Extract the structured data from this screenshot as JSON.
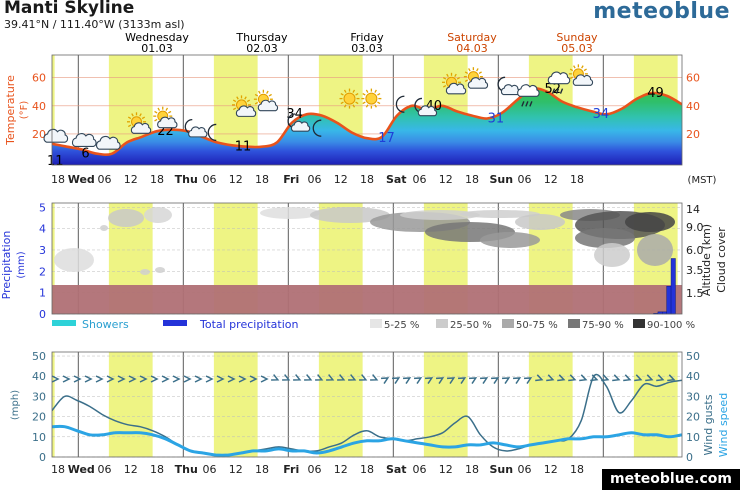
{
  "header": {
    "title": "Manti Skyline",
    "coords": "39.41°N / 111.40°W (3133m asl)",
    "brand": "meteoblue",
    "footer_brand": "meteoblue.com",
    "timezone": "(MST)"
  },
  "days": [
    {
      "name": "Wednesday",
      "date": "01.03",
      "color": "#000000"
    },
    {
      "name": "Thursday",
      "date": "02.03",
      "color": "#000000"
    },
    {
      "name": "Friday",
      "date": "03.03",
      "color": "#000000"
    },
    {
      "name": "Saturday",
      "date": "04.03",
      "color": "#cc4400"
    },
    {
      "name": "Sunday",
      "date": "05.03",
      "color": "#cc4400"
    }
  ],
  "x_tick_labels": [
    "18",
    "Wed",
    "06",
    "12",
    "18",
    "Thu",
    "06",
    "12",
    "18",
    "Fri",
    "06",
    "12",
    "18",
    "Sat",
    "06",
    "12",
    "18",
    "Sun",
    "06",
    "12",
    "18"
  ],
  "temperature": {
    "axis_label": "Temperature",
    "unit": "(°F)",
    "ticks": [
      "20",
      "40",
      "60"
    ],
    "ylim": [
      -2,
      76
    ],
    "series": [
      13,
      11,
      9,
      6,
      6,
      14,
      18,
      22,
      23,
      22,
      18,
      14,
      12,
      11,
      11,
      14,
      28,
      34,
      33,
      28,
      21,
      17,
      18,
      33,
      40,
      37,
      40,
      36,
      33,
      31,
      35,
      44,
      52,
      50,
      43,
      39,
      36,
      34,
      38,
      45,
      49,
      47,
      41
    ],
    "min_max_labels": [
      {
        "value": "11",
        "color": "#000000"
      },
      {
        "value": "6",
        "color": "#000000"
      },
      {
        "value": "22",
        "color": "#000000"
      },
      {
        "value": "11",
        "color": "#000000"
      },
      {
        "value": "34",
        "color": "#000000"
      },
      {
        "value": "17",
        "color": "#1f3fd8"
      },
      {
        "value": "40",
        "color": "#000000"
      },
      {
        "value": "31",
        "color": "#1f3fd8"
      },
      {
        "value": "52",
        "color": "#000000"
      },
      {
        "value": "34",
        "color": "#1f3fd8"
      },
      {
        "value": "49",
        "color": "#000000"
      }
    ]
  },
  "weather_icons": [
    {
      "icon": "cloud-icon"
    },
    {
      "icon": "cloud-icon"
    },
    {
      "icon": "cloud-icon"
    },
    {
      "icon": "sun-cloud-icon"
    },
    {
      "icon": "sun-cloud-icon"
    },
    {
      "icon": "moon-cloud-icon"
    },
    {
      "icon": "moon-icon"
    },
    {
      "icon": "sun-cloud-icon"
    },
    {
      "icon": "sun-cloud-icon"
    },
    {
      "icon": "moon-cloud-icon"
    },
    {
      "icon": "moon-icon"
    },
    {
      "icon": "sun-icon"
    },
    {
      "icon": "sun-icon"
    },
    {
      "icon": "moon-icon"
    },
    {
      "icon": "moon-cloud-icon"
    },
    {
      "icon": "sun-cloud-icon"
    },
    {
      "icon": "sun-cloud-icon"
    },
    {
      "icon": "moon-cloud-icon"
    },
    {
      "icon": "rain-cloud-icon"
    },
    {
      "icon": "rain-cloud-icon"
    },
    {
      "icon": "sun-cloud-icon"
    }
  ],
  "precip_panel": {
    "precip_axis_label": "Precipitation",
    "precip_unit": "(mm)",
    "precip_ticks": [
      "0",
      "1",
      "2",
      "3",
      "4",
      "5"
    ],
    "precip_ylim": [
      0,
      5.2
    ],
    "altitude_label": "Altitude (km)",
    "cloud_label": "Cloud cover",
    "altitude_ticks": [
      "1.5",
      "3.5",
      "6.0",
      "9.0",
      "14"
    ],
    "precip_bars": [
      {
        "hour": 138,
        "value": 0.03
      },
      {
        "hour": 139,
        "value": 0.1
      },
      {
        "hour": 140,
        "value": 0.1
      },
      {
        "hour": 141,
        "value": 1.3
      },
      {
        "hour": 142,
        "value": 2.6
      }
    ],
    "legend": {
      "showers": "Showers",
      "total": "Total precipitation",
      "cloud_classes": [
        "5-25 %",
        "25-50 %",
        "50-75 %",
        "75-90 %",
        "90-100 %"
      ]
    }
  },
  "wind": {
    "mph_label": "(mph)",
    "gust_label": "Wind gusts",
    "speed_label": "Wind speed",
    "ticks": [
      "0",
      "10",
      "20",
      "30",
      "40",
      "50"
    ],
    "ylim": [
      0,
      52
    ],
    "wind_speed": [
      15,
      15,
      13,
      11,
      11,
      12,
      12,
      12,
      11,
      9,
      6,
      3,
      2,
      1,
      1,
      2,
      3,
      3,
      4,
      3,
      3,
      2,
      3,
      5,
      7,
      8,
      8,
      9,
      8,
      7,
      6,
      5,
      5,
      6,
      6,
      7,
      6,
      5,
      6,
      7,
      8,
      9,
      9,
      10,
      10,
      11,
      12,
      11,
      11,
      10,
      11
    ],
    "wind_gusts": [
      23,
      30,
      28,
      25,
      21,
      18,
      16,
      15,
      13,
      10,
      6,
      3,
      2,
      1,
      1,
      2,
      3,
      4,
      5,
      4,
      3,
      3,
      5,
      7,
      11,
      13,
      10,
      9,
      8,
      9,
      10,
      12,
      17,
      20,
      11,
      5,
      3,
      4,
      6,
      7,
      8,
      9,
      18,
      40,
      35,
      22,
      28,
      36,
      35,
      37,
      38
    ]
  },
  "colors": {
    "day_band": "#eef484",
    "temp_line": "#e8531c",
    "axis_dark": "#333333",
    "precip_blue": "#2433d9",
    "showers": "#2ed2d8",
    "gust_line": "#3b6f8a",
    "speed_line": "#2ba4e4",
    "below_band": "#b07075"
  }
}
